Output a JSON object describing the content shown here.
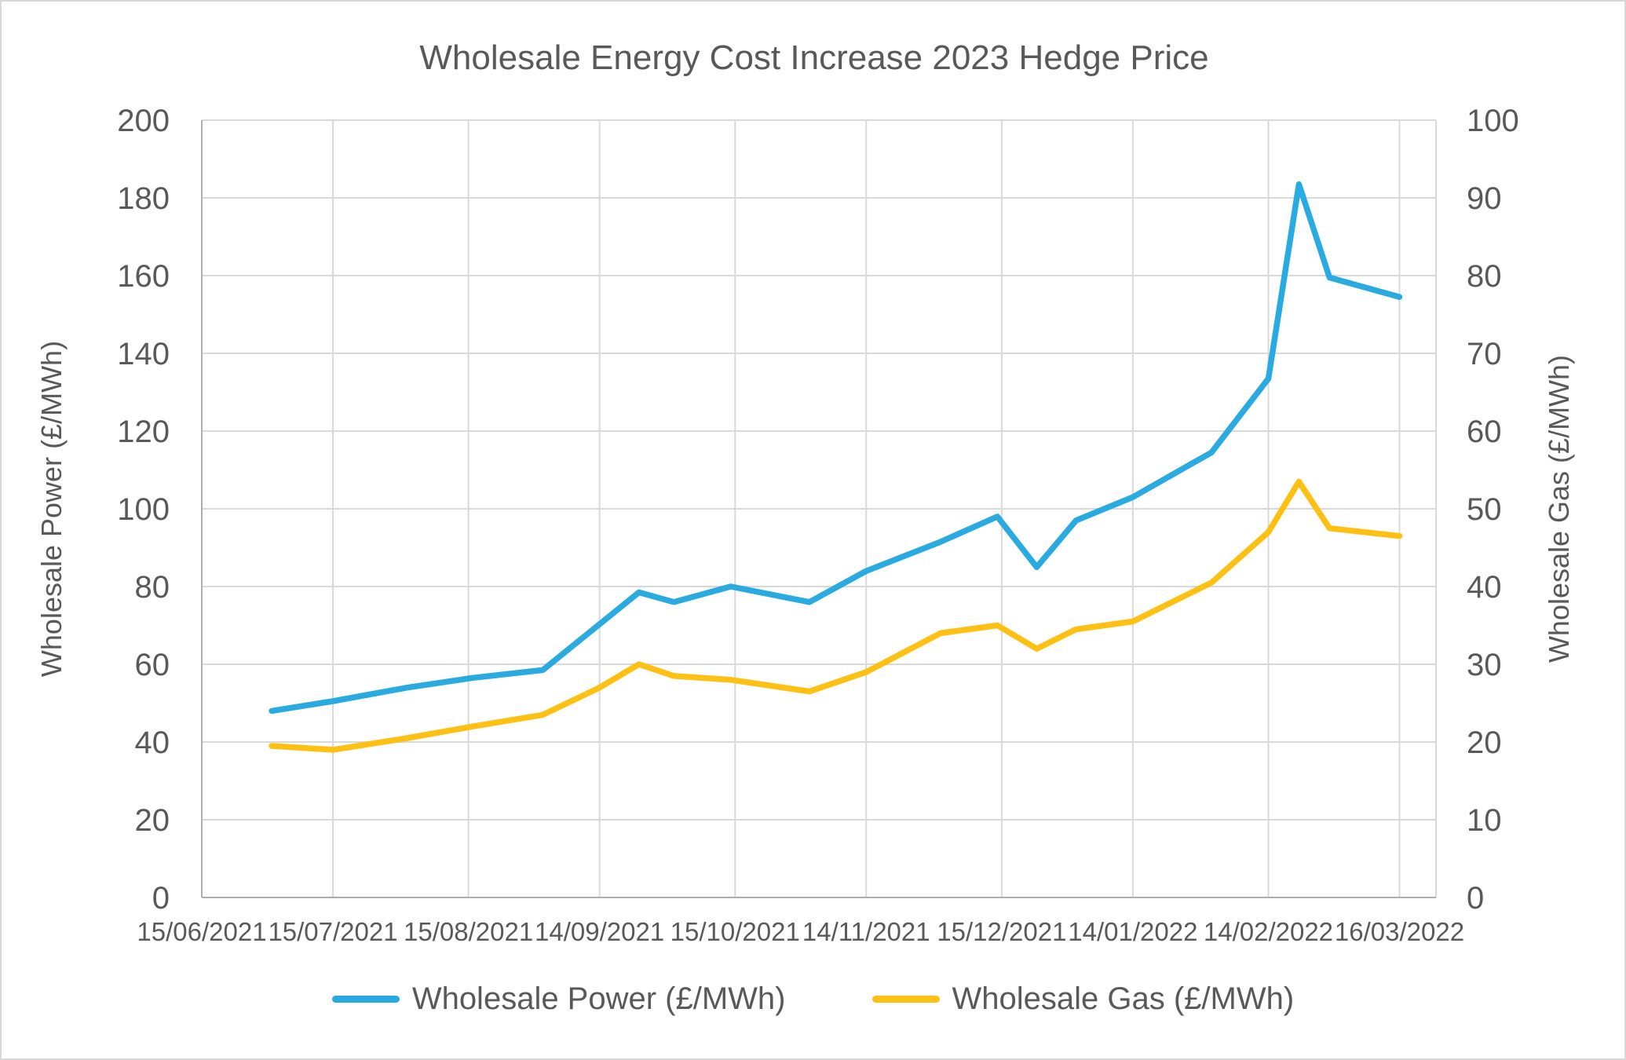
{
  "frame": {
    "background": "#FFFFFF",
    "border_color": "#D8D8D8"
  },
  "chart_data": {
    "type": "line",
    "title": "Wholesale Energy Cost Increase 2023 Hedge Price",
    "text_color": "#595959",
    "grid": {
      "show": true,
      "gridline_color": "#D9D9D9",
      "axis_line_color": "#ADADAD"
    },
    "x_axis": {
      "kind": "date",
      "tick_labels": [
        "15/06/2021",
        "15/07/2021",
        "15/08/2021",
        "14/09/2021",
        "15/10/2021",
        "14/11/2021",
        "15/12/2021",
        "14/01/2022",
        "14/02/2022",
        "16/03/2022"
      ]
    },
    "y_axis_left": {
      "title": "Wholesale Power (£/MWh)",
      "min": 0,
      "max": 200,
      "step": 20,
      "tick_labels": [
        "0",
        "20",
        "40",
        "60",
        "80",
        "100",
        "120",
        "140",
        "160",
        "180",
        "200"
      ]
    },
    "y_axis_right": {
      "title": "Wholesale Gas (£/MWh)",
      "min": 0,
      "max": 100,
      "step": 10,
      "tick_labels": [
        "0",
        "10",
        "20",
        "30",
        "40",
        "50",
        "60",
        "70",
        "80",
        "90",
        "100"
      ]
    },
    "legend": {
      "position": "bottom"
    },
    "series": [
      {
        "name": "Wholesale Power (£/MWh)",
        "axis": "left",
        "color": "#29ABE2",
        "points": [
          {
            "date": "01/07/2021",
            "value": 48
          },
          {
            "date": "15/07/2021",
            "value": 50.5
          },
          {
            "date": "01/08/2021",
            "value": 54
          },
          {
            "date": "16/08/2021",
            "value": 56.5
          },
          {
            "date": "01/09/2021",
            "value": 58.5
          },
          {
            "date": "23/09/2021",
            "value": 78.5
          },
          {
            "date": "01/10/2021",
            "value": 76
          },
          {
            "date": "14/10/2021",
            "value": 80
          },
          {
            "date": "01/11/2021",
            "value": 76
          },
          {
            "date": "14/11/2021",
            "value": 84
          },
          {
            "date": "01/12/2021",
            "value": 91.5
          },
          {
            "date": "14/12/2021",
            "value": 98
          },
          {
            "date": "23/12/2021",
            "value": 85
          },
          {
            "date": "01/01/2022",
            "value": 97
          },
          {
            "date": "14/01/2022",
            "value": 103
          },
          {
            "date": "01/02/2022",
            "value": 114.5
          },
          {
            "date": "14/02/2022",
            "value": 133.5
          },
          {
            "date": "21/02/2022",
            "value": 183.5
          },
          {
            "date": "28/02/2022",
            "value": 159.5
          },
          {
            "date": "16/03/2022",
            "value": 154.5
          }
        ]
      },
      {
        "name": "Wholesale Gas (£/MWh)",
        "axis": "right",
        "color": "#FDC013",
        "points": [
          {
            "date": "01/07/2021",
            "value": 19.5
          },
          {
            "date": "15/07/2021",
            "value": 19
          },
          {
            "date": "01/08/2021",
            "value": 20.5
          },
          {
            "date": "16/08/2021",
            "value": 22
          },
          {
            "date": "01/09/2021",
            "value": 23.5
          },
          {
            "date": "14/09/2021",
            "value": 27
          },
          {
            "date": "23/09/2021",
            "value": 30
          },
          {
            "date": "01/10/2021",
            "value": 28.5
          },
          {
            "date": "14/10/2021",
            "value": 28
          },
          {
            "date": "01/11/2021",
            "value": 26.5
          },
          {
            "date": "14/11/2021",
            "value": 29
          },
          {
            "date": "01/12/2021",
            "value": 34
          },
          {
            "date": "14/12/2021",
            "value": 35
          },
          {
            "date": "23/12/2021",
            "value": 32
          },
          {
            "date": "01/01/2022",
            "value": 34.5
          },
          {
            "date": "14/01/2022",
            "value": 35.5
          },
          {
            "date": "01/02/2022",
            "value": 40.5
          },
          {
            "date": "14/02/2022",
            "value": 47
          },
          {
            "date": "21/02/2022",
            "value": 53.5
          },
          {
            "date": "28/02/2022",
            "value": 47.5
          },
          {
            "date": "16/03/2022",
            "value": 46.5
          }
        ]
      }
    ]
  }
}
